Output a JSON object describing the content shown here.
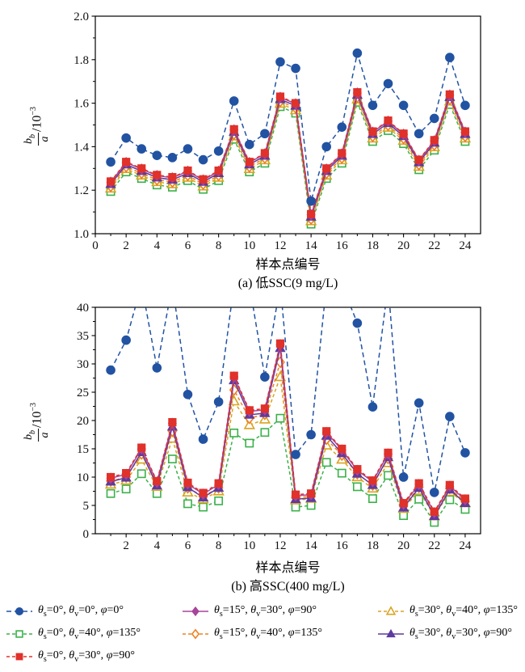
{
  "figure": {
    "ylabel": {
      "numerator": "b",
      "numerator_sub": "b",
      "denominator": "a",
      "suffix": "/10",
      "exponent": "−3"
    }
  },
  "series": [
    {
      "label": "θ_s=0°, θ_v=0°, φ=0°",
      "marker": "circle",
      "filled": true,
      "color": "#2253a2",
      "dash": "6 4"
    },
    {
      "label": "θ_s=15°, θ_v=30°, φ=90°",
      "marker": "diamond",
      "filled": true,
      "color": "#a8449c",
      "dash": ""
    },
    {
      "label": "θ_s=30°, θ_v=40°, φ=135°",
      "marker": "triangle",
      "filled": false,
      "color": "#d9a420",
      "dash": "4 3"
    },
    {
      "label": "θ_s=0°, θ_v=40°, φ=135°",
      "marker": "square",
      "filled": false,
      "color": "#3bb14a",
      "dash": "4 3"
    },
    {
      "label": "θ_s=15°, θ_v=40°, φ=135°",
      "marker": "diamond",
      "filled": false,
      "color": "#ef8122",
      "dash": "4 3"
    },
    {
      "label": "θ_s=30°, θ_v=30°, φ=90°",
      "marker": "triangle",
      "filled": true,
      "color": "#5f3a9e",
      "dash": ""
    },
    {
      "label": "θ_s=0°, θ_v=30°, φ=90°",
      "marker": "square",
      "filled": true,
      "color": "#e0312a",
      "dash": "4 3"
    }
  ],
  "chart_data": [
    {
      "id": "a",
      "type": "line",
      "title": "(a) 低SSC(9 mg/L)",
      "xlabel": "样本点编号",
      "ylabel": "b_b/a /10^-3",
      "x": [
        1,
        2,
        3,
        4,
        5,
        6,
        7,
        8,
        9,
        10,
        11,
        12,
        13,
        14,
        15,
        16,
        17,
        18,
        19,
        20,
        21,
        22,
        23,
        24
      ],
      "xlim": [
        0,
        25
      ],
      "ylim": [
        1.0,
        2.0
      ],
      "xticks": [
        0,
        2,
        4,
        6,
        8,
        10,
        12,
        14,
        16,
        18,
        20,
        22,
        24
      ],
      "xminor": [
        1,
        3,
        5,
        7,
        9,
        11,
        13,
        15,
        17,
        19,
        21,
        23
      ],
      "yticks": [
        1.0,
        1.2,
        1.4,
        1.6,
        1.8,
        2.0
      ],
      "ytick_labels": [
        "1.0",
        "1.2",
        "1.4",
        "1.6",
        "1.8",
        "2.0"
      ],
      "yminor": [
        1.1,
        1.3,
        1.5,
        1.7,
        1.9
      ],
      "grid": false,
      "legend_position": "below",
      "series_values": [
        [
          1.33,
          1.44,
          1.39,
          1.36,
          1.35,
          1.39,
          1.34,
          1.38,
          1.61,
          1.41,
          1.46,
          1.79,
          1.76,
          1.15,
          1.4,
          1.49,
          1.83,
          1.59,
          1.69,
          1.59,
          1.46,
          1.53,
          1.81,
          1.59
        ],
        [
          1.237,
          1.327,
          1.297,
          1.267,
          1.257,
          1.287,
          1.247,
          1.287,
          1.477,
          1.327,
          1.367,
          1.627,
          1.597,
          1.087,
          1.297,
          1.367,
          1.647,
          1.467,
          1.517,
          1.457,
          1.337,
          1.427,
          1.637,
          1.467
        ],
        [
          1.208,
          1.298,
          1.268,
          1.238,
          1.228,
          1.258,
          1.218,
          1.258,
          1.448,
          1.298,
          1.338,
          1.598,
          1.568,
          1.058,
          1.268,
          1.338,
          1.618,
          1.438,
          1.488,
          1.428,
          1.308,
          1.398,
          1.608,
          1.438
        ],
        [
          1.194,
          1.284,
          1.254,
          1.224,
          1.214,
          1.244,
          1.204,
          1.244,
          1.434,
          1.284,
          1.324,
          1.584,
          1.554,
          1.044,
          1.254,
          1.324,
          1.604,
          1.424,
          1.474,
          1.414,
          1.294,
          1.384,
          1.594,
          1.424
        ],
        [
          1.218,
          1.308,
          1.278,
          1.248,
          1.238,
          1.268,
          1.228,
          1.268,
          1.458,
          1.308,
          1.348,
          1.608,
          1.578,
          1.068,
          1.278,
          1.348,
          1.628,
          1.448,
          1.498,
          1.438,
          1.318,
          1.408,
          1.618,
          1.448
        ],
        [
          1.228,
          1.318,
          1.288,
          1.258,
          1.248,
          1.278,
          1.238,
          1.278,
          1.468,
          1.318,
          1.358,
          1.618,
          1.588,
          1.078,
          1.288,
          1.358,
          1.638,
          1.458,
          1.508,
          1.448,
          1.328,
          1.418,
          1.628,
          1.458
        ],
        [
          1.24,
          1.33,
          1.3,
          1.27,
          1.26,
          1.29,
          1.25,
          1.29,
          1.48,
          1.33,
          1.37,
          1.63,
          1.6,
          1.09,
          1.3,
          1.37,
          1.65,
          1.47,
          1.52,
          1.46,
          1.34,
          1.43,
          1.64,
          1.47
        ]
      ]
    },
    {
      "id": "b",
      "type": "line",
      "title": "(b) 高SSC(400 mg/L)",
      "xlabel": "样本点编号",
      "ylabel": "b_b/a /10^-3",
      "x": [
        1,
        2,
        3,
        4,
        5,
        6,
        7,
        8,
        9,
        10,
        11,
        12,
        13,
        14,
        15,
        16,
        17,
        18,
        19,
        20,
        21,
        22,
        23,
        24
      ],
      "xlim": [
        0,
        25
      ],
      "ylim": [
        0,
        40
      ],
      "xticks": [
        2,
        4,
        6,
        8,
        10,
        12,
        14,
        16,
        18,
        20,
        22,
        24
      ],
      "xminor": [
        1,
        3,
        5,
        7,
        9,
        11,
        13,
        15,
        17,
        19,
        21,
        23
      ],
      "yticks": [
        0,
        5,
        10,
        15,
        20,
        25,
        30,
        35,
        40
      ],
      "yminor": [
        2.5,
        7.5,
        12.5,
        17.5,
        22.5,
        27.5,
        32.5,
        37.5
      ],
      "grid": false,
      "legend_position": "below",
      "offscale_plot_value": 44,
      "series_values": [
        [
          28.9,
          34.2,
          null,
          29.3,
          null,
          24.6,
          16.7,
          23.3,
          null,
          null,
          27.7,
          null,
          14.0,
          17.5,
          null,
          null,
          37.2,
          22.4,
          null,
          10.0,
          23.1,
          7.3,
          20.7,
          14.3
        ],
        [
          9.8,
          10.5,
          15.0,
          9.1,
          19.5,
          8.8,
          7.0,
          8.7,
          27.7,
          21.6,
          21.9,
          33.4,
          6.7,
          6.9,
          17.9,
          14.8,
          11.2,
          9.2,
          14.1,
          5.2,
          8.7,
          3.7,
          8.4,
          6.0
        ],
        [
          8.7,
          9.4,
          13.1,
          8.3,
          16.8,
          7.3,
          6.1,
          7.5,
          23.4,
          19.2,
          20.2,
          27.7,
          5.9,
          6.2,
          15.6,
          13.1,
          10.0,
          8.0,
          12.5,
          4.4,
          7.6,
          3.1,
          7.4,
          5.4
        ],
        [
          7.1,
          7.9,
          10.6,
          7.1,
          13.2,
          5.3,
          4.7,
          5.8,
          17.8,
          16.0,
          17.9,
          20.4,
          4.7,
          5.0,
          12.6,
          10.7,
          8.3,
          6.2,
          10.3,
          3.2,
          6.1,
          2.0,
          6.0,
          4.3
        ],
        [
          9.3,
          10.0,
          14.1,
          8.8,
          18.1,
          8.1,
          6.6,
          8.1,
          25.4,
          20.4,
          21.1,
          30.3,
          6.4,
          6.6,
          16.7,
          13.9,
          10.6,
          8.6,
          13.3,
          4.9,
          8.2,
          3.4,
          8.0,
          5.7
        ],
        [
          9.2,
          9.9,
          14.4,
          8.5,
          18.9,
          8.2,
          6.4,
          8.1,
          27.1,
          21.0,
          21.3,
          32.8,
          6.1,
          6.3,
          17.3,
          14.2,
          10.6,
          8.6,
          13.5,
          4.6,
          8.1,
          3.1,
          7.8,
          5.4
        ],
        [
          10.0,
          10.7,
          15.2,
          9.3,
          19.7,
          9.0,
          7.2,
          8.9,
          27.9,
          21.8,
          22.1,
          33.6,
          6.9,
          7.1,
          18.1,
          15.0,
          11.4,
          9.4,
          14.3,
          5.4,
          8.9,
          3.9,
          8.6,
          6.2
        ]
      ]
    }
  ]
}
